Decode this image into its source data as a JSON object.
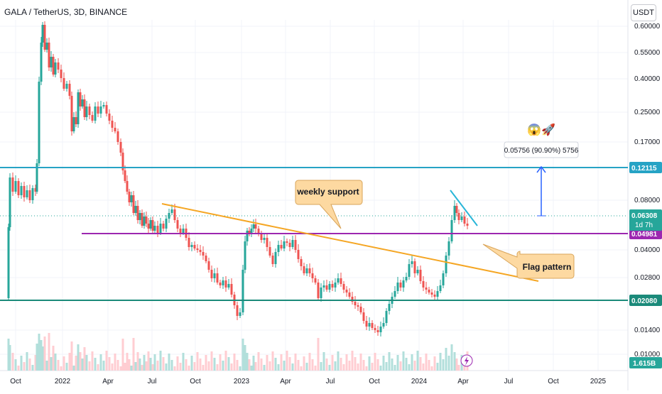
{
  "header": {
    "symbol_title": "GALA / TetherUS, 3D, BINANCE",
    "currency": "USDT"
  },
  "chart_data": {
    "type": "candlestick",
    "title": "GALA / TetherUS, 3D, BINANCE",
    "price_scale": "log",
    "y_tick_labels": [
      "0.60000",
      "0.55000",
      "0.40000",
      "0.25000",
      "0.17000",
      "0.08000",
      "0.04000",
      "0.02800",
      "0.01400",
      "0.01000"
    ],
    "x_tick_labels": [
      "Oct",
      "2022",
      "Apr",
      "Jul",
      "Oct",
      "2023",
      "Apr",
      "Jul",
      "Oct",
      "2024",
      "Apr",
      "Jul",
      "Oct",
      "2025"
    ],
    "horizontal_levels": [
      {
        "value": 0.12115,
        "label": "0.12115",
        "color": "#26a3c5"
      },
      {
        "value": 0.04981,
        "label": "0.04981",
        "color": "#9c27b0"
      },
      {
        "value": 0.0208,
        "label": "0.02080",
        "color": "#1b8a7a"
      }
    ],
    "current_price": {
      "label": "0.06308",
      "countdown": "1d 7h",
      "color": "#26a69a"
    },
    "volume": {
      "label": "1.615B",
      "color": "#26a69a"
    },
    "measure": {
      "text": "0.05756 (90.90%) 5756",
      "emoji": "😱🚀"
    },
    "annotations": [
      {
        "text": "weekly support"
      },
      {
        "text": "Flag pattern"
      }
    ],
    "grid": true
  },
  "colors": {
    "up": "#26a69a",
    "down": "#ef5350",
    "trendline": "#f5a623",
    "callout_bg": "#fdd9a1",
    "callout_border": "#d9a55a"
  }
}
